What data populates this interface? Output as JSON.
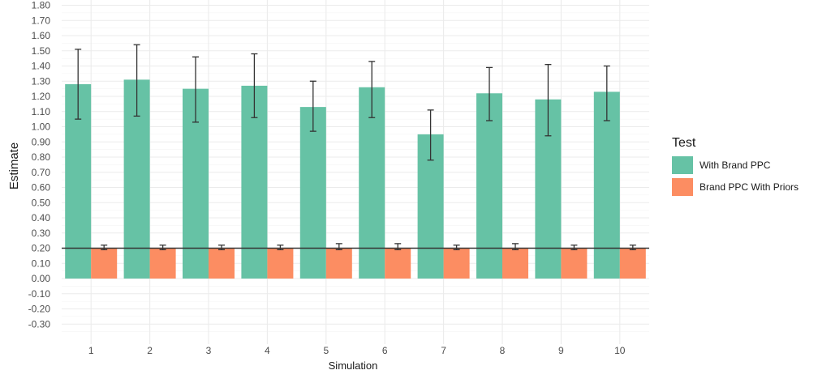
{
  "chart_data": {
    "type": "bar",
    "xlabel": "Simulation",
    "ylabel": "Estimate",
    "categories": [
      "1",
      "2",
      "3",
      "4",
      "5",
      "6",
      "7",
      "8",
      "9",
      "10"
    ],
    "ylim": [
      -0.35,
      1.82
    ],
    "y_ticks": [
      "1.80",
      "1.70",
      "1.60",
      "1.50",
      "1.40",
      "1.30",
      "1.20",
      "1.10",
      "1.00",
      "0.90",
      "0.80",
      "0.70",
      "0.60",
      "0.50",
      "0.40",
      "0.30",
      "0.20",
      "0.10",
      "0.00",
      "-0.10",
      "-0.20",
      "-0.30"
    ],
    "grid": true,
    "reference_line": 0.2,
    "legend": {
      "title": "Test",
      "position": "right"
    },
    "series": [
      {
        "name": "With Brand PPC",
        "color": "#66c2a5",
        "values": [
          1.28,
          1.31,
          1.25,
          1.27,
          1.13,
          1.26,
          0.95,
          1.22,
          1.18,
          1.23
        ],
        "error_low": [
          1.05,
          1.07,
          1.03,
          1.06,
          0.97,
          1.06,
          0.78,
          1.04,
          0.94,
          1.04
        ],
        "error_high": [
          1.51,
          1.54,
          1.46,
          1.48,
          1.3,
          1.43,
          1.11,
          1.39,
          1.41,
          1.4
        ]
      },
      {
        "name": "Brand PPC With Priors",
        "color": "#fc8d62",
        "values": [
          0.2,
          0.2,
          0.2,
          0.2,
          0.2,
          0.2,
          0.2,
          0.2,
          0.2,
          0.2
        ],
        "error_low": [
          0.19,
          0.19,
          0.19,
          0.19,
          0.19,
          0.19,
          0.19,
          0.19,
          0.19,
          0.19
        ],
        "error_high": [
          0.22,
          0.22,
          0.22,
          0.22,
          0.23,
          0.23,
          0.22,
          0.23,
          0.22,
          0.22
        ]
      }
    ]
  }
}
